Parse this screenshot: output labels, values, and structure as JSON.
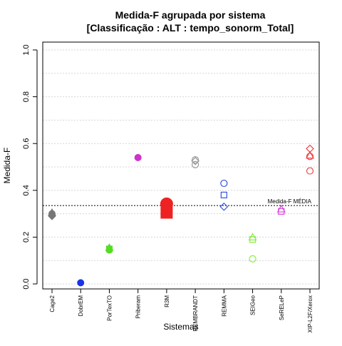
{
  "chart_data": {
    "type": "scatter",
    "title_line1": "Medida-F agrupada por sistema",
    "title_line2": "[Classificação : ALT : tempo_sonorm_Total]",
    "xlabel": "Sistemas",
    "ylabel": "Medida-F",
    "ylim": [
      0,
      1
    ],
    "yticks": [
      "0.0",
      "0.2",
      "0.4",
      "0.6",
      "0.8",
      "1.0"
    ],
    "ytick_values": [
      0,
      0.2,
      0.4,
      0.6,
      0.8,
      1.0
    ],
    "grid": true,
    "categories": [
      "Cage2",
      "DobrEM",
      "PorTexTO",
      "Priberam",
      "R3M",
      "REMBRANDT",
      "REMMA",
      "SEIGeo",
      "SeRELeP",
      "XIP-L2F/Xerox"
    ],
    "reference_line": {
      "value": 0.335,
      "label": "Medida-F MÉDIA"
    },
    "series": [
      {
        "category": "Cage2",
        "color": "#777777",
        "points": [
          {
            "y": 0.29,
            "marker": "diamond",
            "filled": true
          },
          {
            "y": 0.3,
            "marker": "circle",
            "filled": true
          },
          {
            "y": 0.305,
            "marker": "triangle",
            "filled": true
          }
        ]
      },
      {
        "category": "DobrEM",
        "color": "#1a33e6",
        "points": [
          {
            "y": 0.005,
            "marker": "circle",
            "filled": true
          }
        ]
      },
      {
        "category": "PorTexTO",
        "color": "#55dd22",
        "points": [
          {
            "y": 0.145,
            "marker": "circle",
            "filled": true
          },
          {
            "y": 0.15,
            "marker": "square",
            "filled": true
          },
          {
            "y": 0.155,
            "marker": "triangle",
            "filled": true
          }
        ]
      },
      {
        "category": "Priberam",
        "color": "#cc33cc",
        "points": [
          {
            "y": 0.54,
            "marker": "circle",
            "filled": true
          }
        ]
      },
      {
        "category": "R3M",
        "color": "#ee2222",
        "points": [
          {
            "y": 0.342,
            "marker": "circle",
            "filled": true,
            "size": "large"
          },
          {
            "y": 0.305,
            "marker": "square",
            "filled": true,
            "size": "large"
          }
        ]
      },
      {
        "category": "REMBRANDT",
        "color": "#999999",
        "points": [
          {
            "y": 0.525,
            "marker": "diamond",
            "filled": false
          },
          {
            "y": 0.53,
            "marker": "circle",
            "filled": false
          },
          {
            "y": 0.51,
            "marker": "circle",
            "filled": false
          }
        ]
      },
      {
        "category": "REMMA",
        "color": "#3355dd",
        "points": [
          {
            "y": 0.43,
            "marker": "circle",
            "filled": false
          },
          {
            "y": 0.38,
            "marker": "square",
            "filled": false
          },
          {
            "y": 0.33,
            "marker": "diamond",
            "filled": false
          }
        ]
      },
      {
        "category": "SEIGeo",
        "color": "#88ee44",
        "points": [
          {
            "y": 0.2,
            "marker": "triangle",
            "filled": false
          },
          {
            "y": 0.19,
            "marker": "square",
            "filled": false
          },
          {
            "y": 0.107,
            "marker": "circle",
            "filled": false
          }
        ]
      },
      {
        "category": "SeRELeP",
        "color": "#dd44dd",
        "points": [
          {
            "y": 0.32,
            "marker": "triangle",
            "filled": false
          },
          {
            "y": 0.31,
            "marker": "square",
            "filled": false
          }
        ]
      },
      {
        "category": "XIP-L2F/Xerox",
        "color": "#ee4444",
        "points": [
          {
            "y": 0.578,
            "marker": "diamond",
            "filled": false
          },
          {
            "y": 0.55,
            "marker": "triangle",
            "filled": false
          },
          {
            "y": 0.545,
            "marker": "circle",
            "filled": false
          },
          {
            "y": 0.483,
            "marker": "circle",
            "filled": false
          }
        ]
      }
    ]
  }
}
